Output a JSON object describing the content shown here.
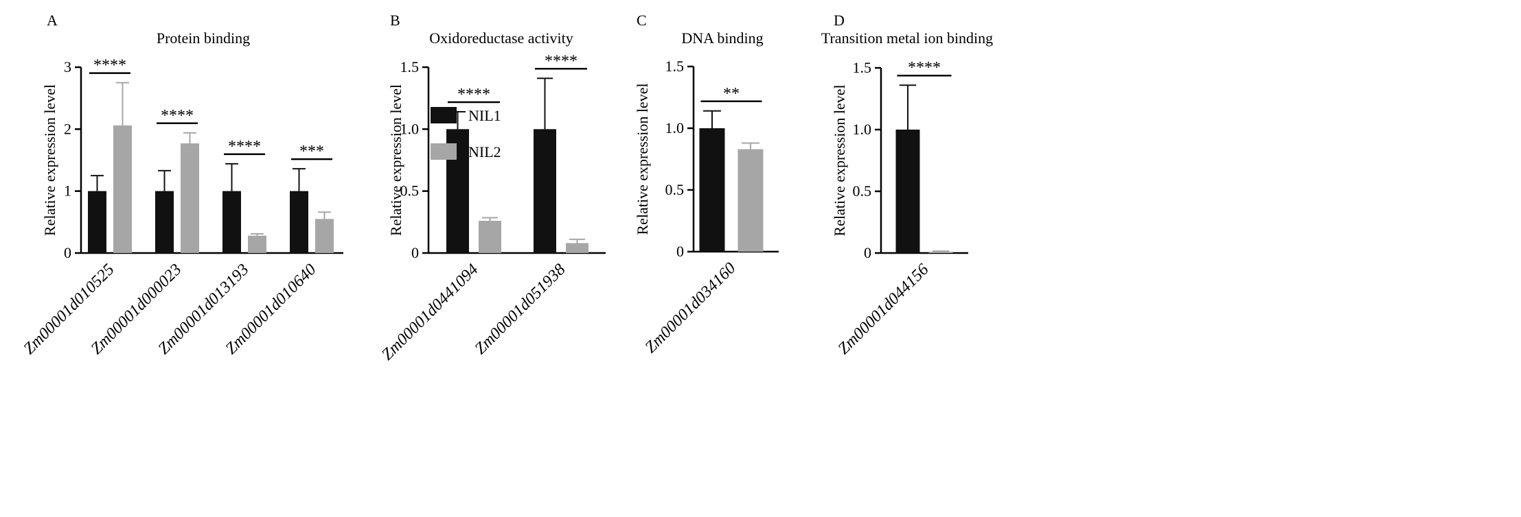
{
  "colors": {
    "NIL1": "#111111",
    "NIL2": "#a6a6a6"
  },
  "legend": {
    "items": [
      {
        "label": "NIL1",
        "color": "#111111"
      },
      {
        "label": "NIL2",
        "color": "#a6a6a6"
      }
    ],
    "placement": "top-right of panel A"
  },
  "chart_data": [
    {
      "panel": "A",
      "type": "bar",
      "title": "Protein binding",
      "ylabel": "Relative expression level",
      "xlabel": "",
      "ylim": [
        0,
        3
      ],
      "yticks": [
        "0",
        "1",
        "2",
        "3"
      ],
      "categories": [
        "Zm00001d010525",
        "Zm00001d000023",
        "Zm00001d013193",
        "Zm00001d010640"
      ],
      "series": [
        {
          "name": "NIL1",
          "values": [
            1.0,
            1.0,
            1.0,
            1.0
          ],
          "errors": [
            0.25,
            0.33,
            0.44,
            0.36
          ]
        },
        {
          "name": "NIL2",
          "values": [
            2.06,
            1.77,
            0.28,
            0.55
          ],
          "errors": [
            0.69,
            0.17,
            0.03,
            0.11
          ]
        }
      ],
      "significance": [
        "****",
        "****",
        "****",
        "***"
      ],
      "grid": false
    },
    {
      "panel": "B",
      "type": "bar",
      "title": "Oxidoreductase activity",
      "ylabel": "Relative expression level",
      "xlabel": "",
      "ylim": [
        0,
        1.5
      ],
      "yticks": [
        "0",
        "0.5",
        "1.0",
        "1.5"
      ],
      "categories": [
        "Zm00001d0441094",
        "Zm00001d051938"
      ],
      "series": [
        {
          "name": "NIL1",
          "values": [
            1.0,
            1.0
          ],
          "errors": [
            0.14,
            0.41
          ]
        },
        {
          "name": "NIL2",
          "values": [
            0.26,
            0.08
          ],
          "errors": [
            0.025,
            0.03
          ]
        }
      ],
      "significance": [
        "****",
        "****"
      ],
      "grid": false
    },
    {
      "panel": "C",
      "type": "bar",
      "title": "DNA binding",
      "ylabel": "Relative expression level",
      "xlabel": "",
      "ylim": [
        0,
        1.5
      ],
      "yticks": [
        "0",
        "0.5",
        "1.0",
        "1.5"
      ],
      "categories": [
        "Zm00001d034160"
      ],
      "series": [
        {
          "name": "NIL1",
          "values": [
            1.0
          ],
          "errors": [
            0.14
          ]
        },
        {
          "name": "NIL2",
          "values": [
            0.83
          ],
          "errors": [
            0.05
          ]
        }
      ],
      "significance": [
        "**"
      ],
      "grid": false
    },
    {
      "panel": "D",
      "type": "bar",
      "title": "Transition metal ion binding",
      "ylabel": "Relative expression level",
      "xlabel": "",
      "ylim": [
        0,
        1.5
      ],
      "yticks": [
        "0",
        "0.5",
        "1.0",
        "1.5"
      ],
      "categories": [
        "Zm00001d044156"
      ],
      "series": [
        {
          "name": "NIL1",
          "values": [
            1.0
          ],
          "errors": [
            0.36
          ]
        },
        {
          "name": "NIL2",
          "values": [
            0.01
          ],
          "errors": [
            0.005
          ]
        }
      ],
      "significance": [
        "****"
      ],
      "grid": false
    }
  ]
}
